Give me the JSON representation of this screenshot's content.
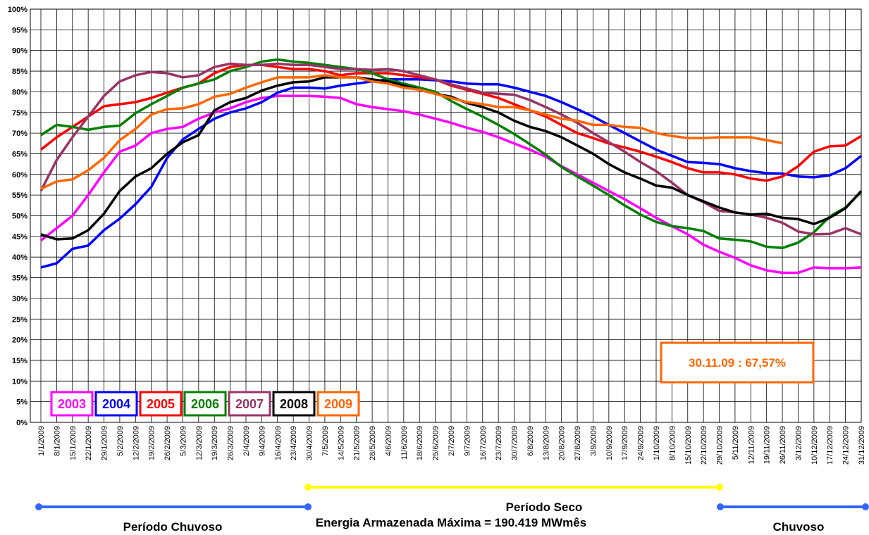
{
  "chart_data": {
    "type": "line",
    "categories": [
      "1/1/2009",
      "8/1/2009",
      "15/1/2009",
      "22/1/2009",
      "29/1/2009",
      "5/2/2009",
      "12/2/2009",
      "19/2/2009",
      "26/2/2009",
      "5/3/2009",
      "12/3/2009",
      "19/3/2009",
      "26/3/2009",
      "2/4/2009",
      "9/4/2009",
      "16/4/2009",
      "23/4/2009",
      "30/4/2009",
      "7/5/2009",
      "14/5/2009",
      "21/5/2009",
      "28/5/2009",
      "4/6/2009",
      "11/6/2009",
      "18/6/2009",
      "25/6/2009",
      "2/7/2009",
      "9/7/2009",
      "16/7/2009",
      "23/7/2009",
      "30/7/2009",
      "6/8/2009",
      "13/8/2009",
      "20/8/2009",
      "27/8/2009",
      "3/9/2009",
      "10/9/2009",
      "17/9/2009",
      "24/9/2009",
      "1/10/2009",
      "8/10/2009",
      "15/10/2009",
      "22/10/2009",
      "29/10/2009",
      "5/11/2009",
      "12/11/2009",
      "19/11/2009",
      "26/11/2009",
      "3/12/2009",
      "10/12/2009",
      "17/12/2009",
      "24/12/2009",
      "31/12/2009"
    ],
    "series": [
      {
        "name": "2003",
        "color": "#ff00ff",
        "values": [
          44,
          47,
          50,
          55,
          60.5,
          65.5,
          67,
          70,
          71,
          71.5,
          73.5,
          75,
          76,
          77.5,
          78.5,
          79,
          79,
          79,
          78.8,
          78.5,
          77,
          76.3,
          75.8,
          75.3,
          74.5,
          73.5,
          72.5,
          71.3,
          70.3,
          69,
          67.5,
          66,
          64.3,
          62,
          60,
          58,
          56,
          54,
          51.8,
          49.5,
          47.5,
          45.5,
          43,
          41.3,
          39.8,
          38,
          36.8,
          36.2,
          36.2,
          37.5,
          37.3,
          37.3,
          37.5
        ]
      },
      {
        "name": "2004",
        "color": "#0000ff",
        "values": [
          37.5,
          38.5,
          42,
          42.8,
          46.5,
          49.3,
          52.8,
          57,
          64,
          68.5,
          71,
          73.5,
          75,
          76,
          77.5,
          79.8,
          81,
          81,
          80.8,
          81.5,
          82,
          82.5,
          83,
          83,
          83,
          82.8,
          82.5,
          82,
          81.8,
          81.8,
          81,
          80,
          79,
          77.5,
          75.8,
          74,
          72,
          70,
          68,
          66,
          64.5,
          63,
          62.8,
          62.5,
          61.5,
          60.8,
          60.3,
          60.2,
          59.5,
          59.3,
          59.8,
          61.5,
          64.5
        ]
      },
      {
        "name": "2005",
        "color": "#ff0000",
        "values": [
          66,
          69,
          71.5,
          74,
          76.5,
          77,
          77.5,
          78.5,
          79.8,
          81,
          82,
          84.5,
          86,
          86.5,
          86.5,
          86,
          85.5,
          85.5,
          85,
          84,
          84.5,
          84.5,
          84.5,
          84,
          83.5,
          83,
          81.5,
          80.5,
          79.5,
          78.5,
          77,
          75.5,
          74,
          72,
          70,
          68.8,
          67.5,
          66.5,
          65.5,
          64.3,
          63,
          61.5,
          60.5,
          60.5,
          60,
          59,
          58.5,
          59.5,
          62,
          65.5,
          66.8,
          67,
          69.3
        ]
      },
      {
        "name": "2006",
        "color": "#008000",
        "values": [
          69.5,
          72,
          71.5,
          70.8,
          71.5,
          71.8,
          74.8,
          77,
          79,
          81,
          82,
          83,
          85,
          86,
          87.3,
          87.8,
          87.3,
          87,
          86.5,
          86,
          85.5,
          84.5,
          83,
          82,
          81,
          80,
          77.8,
          75.8,
          74,
          72,
          69.8,
          67.3,
          64.8,
          61.8,
          59.5,
          57.3,
          55,
          52.5,
          50.3,
          48.5,
          47.5,
          47,
          46.3,
          44.5,
          44.2,
          43.8,
          42.5,
          42.2,
          43.5,
          46,
          49.8,
          52,
          55.8
        ]
      },
      {
        "name": "2007",
        "color": "#993366",
        "values": [
          56,
          63.5,
          69,
          74,
          79,
          82.5,
          84,
          84.8,
          84.5,
          83.5,
          84,
          86,
          86.8,
          86.5,
          86.5,
          86.8,
          86.5,
          86.5,
          86,
          85.5,
          85.5,
          85.3,
          85.5,
          85,
          84,
          83,
          81.8,
          80.8,
          79.8,
          79.5,
          79.3,
          78,
          76.3,
          74.5,
          72.5,
          70,
          67.8,
          65.5,
          63,
          60.8,
          58,
          55,
          53.3,
          51.2,
          50.8,
          50.3,
          49.5,
          48.3,
          46.2,
          45.5,
          45.6,
          47,
          45.5
        ]
      },
      {
        "name": "2008",
        "color": "#000000",
        "values": [
          45.5,
          44.3,
          44.5,
          46.5,
          50.5,
          56,
          59.5,
          61.5,
          65,
          67.8,
          69.5,
          75.5,
          77.5,
          78.5,
          80.3,
          81.5,
          82.3,
          82.5,
          83.5,
          83.5,
          83.5,
          83,
          82.5,
          81.5,
          80.5,
          79.5,
          78.8,
          77.3,
          76.3,
          75,
          73,
          71.5,
          70.5,
          69,
          67,
          65,
          62.5,
          60.5,
          59,
          57.3,
          56.8,
          55,
          53.5,
          52,
          50.8,
          50.3,
          50.5,
          49.5,
          49.2,
          48,
          49.5,
          51.8,
          56
        ]
      },
      {
        "name": "2009",
        "color": "#ff6600",
        "values": [
          56.5,
          58.3,
          58.8,
          61,
          64,
          68.3,
          71,
          74.5,
          75.8,
          76,
          77,
          78.8,
          79.5,
          81,
          82.3,
          83.5,
          83.5,
          83.5,
          84,
          83.5,
          83.5,
          82.5,
          82,
          81,
          80.5,
          79.5,
          78.5,
          77.5,
          77,
          76.3,
          76.3,
          75.5,
          74.5,
          73.5,
          73,
          72,
          72,
          71.5,
          71.3,
          70,
          69.3,
          68.8,
          68.8,
          69,
          69,
          69,
          68.3,
          67.57,
          null,
          null,
          null,
          null,
          null
        ]
      }
    ],
    "ylim": [
      0,
      100
    ],
    "yticks": [
      {
        "value": 0,
        "label": "0%"
      },
      {
        "value": 5,
        "label": "5%"
      },
      {
        "value": 10,
        "label": "10%"
      },
      {
        "value": 15,
        "label": "15%"
      },
      {
        "value": 20,
        "label": "20%"
      },
      {
        "value": 25,
        "label": "25%"
      },
      {
        "value": 30,
        "label": "30%"
      },
      {
        "value": 35,
        "label": "35%"
      },
      {
        "value": 40,
        "label": "40%"
      },
      {
        "value": 45,
        "label": "45%"
      },
      {
        "value": 50,
        "label": "50%"
      },
      {
        "value": 55,
        "label": "55%"
      },
      {
        "value": 60,
        "label": "60%"
      },
      {
        "value": 65,
        "label": "65%"
      },
      {
        "value": 70,
        "label": "70%"
      },
      {
        "value": 75,
        "label": "75%"
      },
      {
        "value": 80,
        "label": "80%"
      },
      {
        "value": 85,
        "label": "85%"
      },
      {
        "value": 90,
        "label": "90%"
      },
      {
        "value": 95,
        "label": "95%"
      },
      {
        "value": 100,
        "label": "100%"
      }
    ],
    "grid": true,
    "annotation": "30.11.09 : 67,57%",
    "period_labels": [
      "Período Chuvoso",
      "Período Seco",
      "Chuvoso"
    ],
    "footnote": "Energia Armazenada Máxima = 190.419 MWmês"
  }
}
